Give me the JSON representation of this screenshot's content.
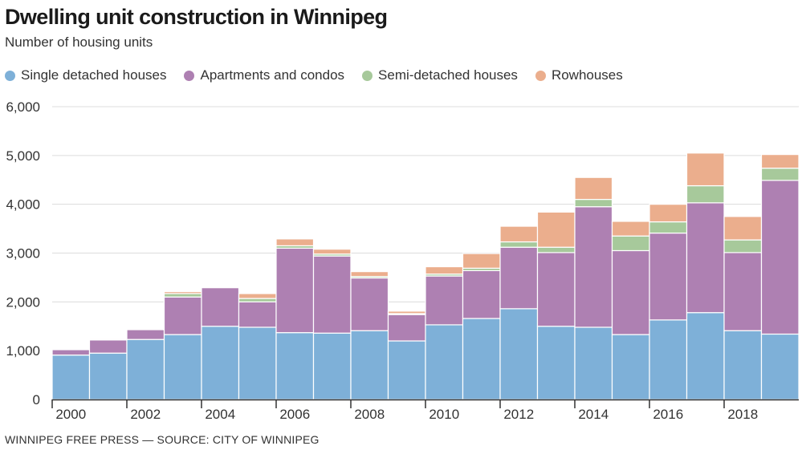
{
  "header": {
    "title": "Dwelling unit construction in Winnipeg",
    "subtitle": "Number of housing units"
  },
  "source": "WINNIPEG FREE PRESS — SOURCE: CITY OF WINNIPEG",
  "chart_data": {
    "type": "bar",
    "stacked": true,
    "title": "Dwelling unit construction in Winnipeg",
    "subtitle": "Number of housing units",
    "xlabel": "",
    "ylabel": "",
    "ylim": [
      0,
      6000
    ],
    "yticks": [
      0,
      1000,
      2000,
      3000,
      4000,
      5000,
      6000
    ],
    "ytick_labels": [
      "0",
      "1,000",
      "2,000",
      "3,000",
      "4,000",
      "5,000",
      "6,000"
    ],
    "xtick_labels": [
      "2000",
      "2002",
      "2004",
      "2006",
      "2008",
      "2010",
      "2012",
      "2014",
      "2016",
      "2018"
    ],
    "grid": true,
    "legend_position": "top-left",
    "categories": [
      "2000",
      "2001",
      "2002",
      "2003",
      "2004",
      "2005",
      "2006",
      "2007",
      "2008",
      "2009",
      "2010",
      "2011",
      "2012",
      "2013",
      "2014",
      "2015",
      "2016",
      "2017",
      "2018",
      "2019"
    ],
    "series": [
      {
        "name": "Single detached houses",
        "color": "#7eb0d8",
        "values": [
          910,
          950,
          1230,
          1330,
          1500,
          1480,
          1370,
          1360,
          1410,
          1200,
          1530,
          1660,
          1860,
          1500,
          1480,
          1330,
          1630,
          1780,
          1410,
          1340
        ]
      },
      {
        "name": "Apartments and condos",
        "color": "#ae80b2",
        "values": [
          110,
          270,
          200,
          770,
          790,
          520,
          1730,
          1580,
          1080,
          540,
          1000,
          980,
          1260,
          1510,
          2470,
          1720,
          1780,
          2250,
          1600,
          3150
        ]
      },
      {
        "name": "Semi-detached houses",
        "color": "#a7c99b",
        "values": [
          0,
          20,
          0,
          70,
          0,
          70,
          50,
          40,
          30,
          20,
          40,
          50,
          110,
          110,
          150,
          300,
          230,
          350,
          260,
          250
        ]
      },
      {
        "name": "Rowhouses",
        "color": "#ebae8d",
        "values": [
          0,
          20,
          0,
          40,
          0,
          100,
          140,
          100,
          100,
          50,
          150,
          300,
          320,
          720,
          450,
          300,
          360,
          670,
          480,
          280
        ]
      }
    ]
  }
}
